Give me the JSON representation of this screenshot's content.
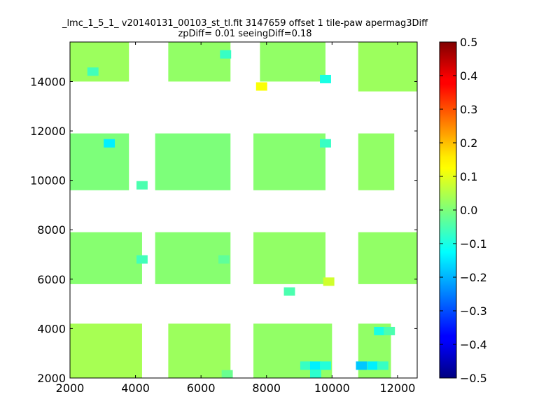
{
  "chart_data": {
    "type": "heatmap",
    "title_lines": [
      "_lmc_1_5_1_ v20140131_00103_st_tl.fit 3147659 offset 1 tile-paw apermag3Diff",
      "zpDiff= 0.01 seeingDiff=0.18"
    ],
    "xlabel": "",
    "ylabel": "",
    "xlim": [
      2000,
      12600
    ],
    "ylim": [
      2000,
      15600
    ],
    "x_ticks": [
      2000,
      4000,
      6000,
      8000,
      10000,
      12000
    ],
    "y_ticks": [
      2000,
      4000,
      6000,
      8000,
      10000,
      12000,
      14000
    ],
    "colorbar": {
      "range": [
        -0.5,
        0.5
      ],
      "ticks": [
        "0.5",
        "0.4",
        "0.3",
        "0.2",
        "0.1",
        "0.0",
        "−0.1",
        "−0.2",
        "−0.3",
        "−0.4",
        "−0.5"
      ],
      "colormap": "jet"
    },
    "cell_size": 340,
    "default_value": 0.02,
    "regions": [
      {
        "xmin": 2000,
        "xmax": 3800,
        "ymin": 14000,
        "ymax": 15600,
        "value": 0.03
      },
      {
        "xmin": 5000,
        "xmax": 6900,
        "ymin": 14000,
        "ymax": 15600,
        "value": 0.02
      },
      {
        "xmin": 7800,
        "xmax": 9800,
        "ymin": 14000,
        "ymax": 15600,
        "value": 0.02
      },
      {
        "xmin": 10800,
        "xmax": 12600,
        "ymin": 13600,
        "ymax": 15600,
        "value": 0.03
      },
      {
        "xmin": 2000,
        "xmax": 3800,
        "ymin": 9600,
        "ymax": 11900,
        "value": 0.0
      },
      {
        "xmin": 4600,
        "xmax": 6900,
        "ymin": 9600,
        "ymax": 11900,
        "value": 0.0
      },
      {
        "xmin": 7600,
        "xmax": 9800,
        "ymin": 9600,
        "ymax": 11900,
        "value": 0.01
      },
      {
        "xmin": 10800,
        "xmax": 11900,
        "ymin": 9600,
        "ymax": 11900,
        "value": 0.02
      },
      {
        "xmin": 2000,
        "xmax": 4200,
        "ymin": 5800,
        "ymax": 7900,
        "value": 0.01
      },
      {
        "xmin": 4600,
        "xmax": 6900,
        "ymin": 5800,
        "ymax": 7900,
        "value": 0.01
      },
      {
        "xmin": 7600,
        "xmax": 9800,
        "ymin": 5800,
        "ymax": 7900,
        "value": 0.02
      },
      {
        "xmin": 10800,
        "xmax": 12600,
        "ymin": 5800,
        "ymax": 7900,
        "value": 0.02
      },
      {
        "xmin": 2000,
        "xmax": 4200,
        "ymin": 2000,
        "ymax": 4200,
        "value": 0.04
      },
      {
        "xmin": 5000,
        "xmax": 6900,
        "ymin": 2000,
        "ymax": 4200,
        "value": 0.03
      },
      {
        "xmin": 7600,
        "xmax": 10000,
        "ymin": 2000,
        "ymax": 4200,
        "value": 0.02
      },
      {
        "xmin": 10800,
        "xmax": 11800,
        "ymin": 2000,
        "ymax": 4200,
        "value": 0.02
      }
    ],
    "highlighted_cells": [
      {
        "x": 2700,
        "y": 14400,
        "value": -0.06
      },
      {
        "x": 6750,
        "y": 15100,
        "value": -0.07
      },
      {
        "x": 7850,
        "y": 13800,
        "value": 0.12
      },
      {
        "x": 9800,
        "y": 14100,
        "value": -0.1
      },
      {
        "x": 3200,
        "y": 11500,
        "value": -0.14
      },
      {
        "x": 9800,
        "y": 11500,
        "value": -0.07
      },
      {
        "x": 4200,
        "y": 9800,
        "value": -0.05
      },
      {
        "x": 4200,
        "y": 6800,
        "value": -0.06
      },
      {
        "x": 6700,
        "y": 6800,
        "value": -0.03
      },
      {
        "x": 9900,
        "y": 5900,
        "value": 0.08
      },
      {
        "x": 8700,
        "y": 5500,
        "value": -0.05
      },
      {
        "x": 11450,
        "y": 3900,
        "value": -0.1
      },
      {
        "x": 11750,
        "y": 3900,
        "value": -0.05
      },
      {
        "x": 10900,
        "y": 2500,
        "value": -0.18
      },
      {
        "x": 11250,
        "y": 2500,
        "value": -0.14
      },
      {
        "x": 11550,
        "y": 2500,
        "value": -0.07
      },
      {
        "x": 9200,
        "y": 2500,
        "value": -0.07
      },
      {
        "x": 9500,
        "y": 2500,
        "value": -0.14
      },
      {
        "x": 9800,
        "y": 2500,
        "value": -0.09
      },
      {
        "x": 9500,
        "y": 2150,
        "value": -0.08
      },
      {
        "x": 6800,
        "y": 2150,
        "value": -0.02
      }
    ]
  }
}
